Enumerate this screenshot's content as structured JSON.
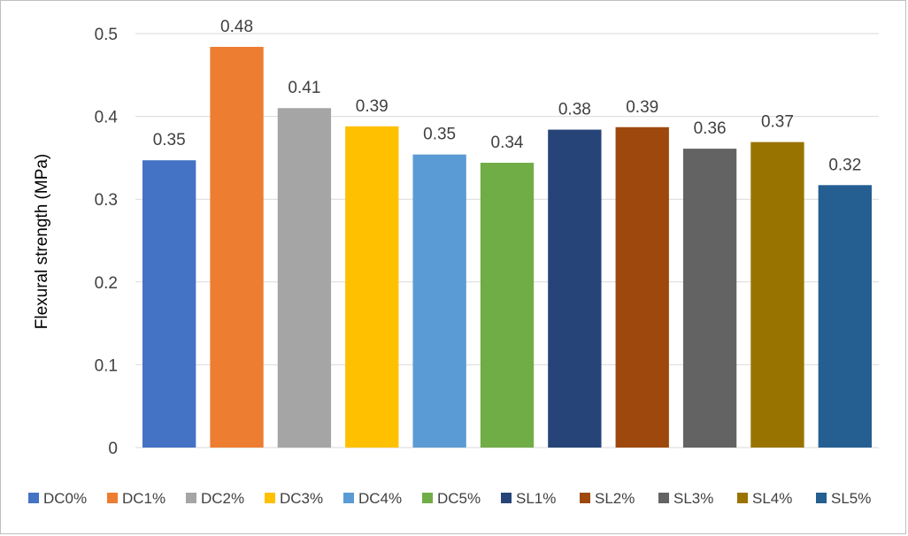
{
  "chart_data": {
    "type": "bar",
    "title": "",
    "xlabel": "",
    "ylabel": "Flexural strength (MPa)",
    "ylim": [
      0,
      0.5
    ],
    "yticks": [
      "0",
      "0.1",
      "0.2",
      "0.3",
      "0.4",
      "0.5"
    ],
    "grid": true,
    "legend_position": "bottom",
    "categories": [
      "DC0%",
      "DC1%",
      "DC2%",
      "DC3%",
      "DC4%",
      "DC5%",
      "SL1%",
      "SL2%",
      "SL3%",
      "SL4%",
      "SL5%"
    ],
    "values": [
      0.347,
      0.484,
      0.41,
      0.388,
      0.354,
      0.344,
      0.384,
      0.387,
      0.361,
      0.369,
      0.317
    ],
    "data_labels": [
      "0.35",
      "0.48",
      "0.41",
      "0.39",
      "0.35",
      "0.34",
      "0.38",
      "0.39",
      "0.36",
      "0.37",
      "0.32"
    ],
    "colors": [
      "#4472c4",
      "#ed7d31",
      "#a5a5a5",
      "#ffc000",
      "#5b9bd5",
      "#70ad47",
      "#264478",
      "#9e480e",
      "#636363",
      "#997300",
      "#255e91"
    ]
  }
}
